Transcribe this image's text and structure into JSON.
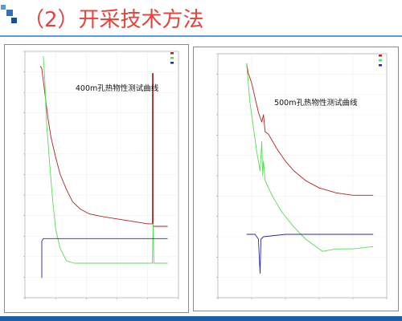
{
  "slide": {
    "title": "（2）开采技术方法",
    "accent_colors": {
      "title": "#e8413a",
      "rule": "#5b9bd5",
      "footer": "#1f5fa8"
    }
  },
  "chart_data": [
    {
      "type": "line",
      "title": "400m孔热物性测试曲线",
      "xlabel": "",
      "ylabel": "",
      "grid": true,
      "legend": "top-right",
      "series": [
        {
          "color": "#b22222",
          "points": [
            [
              0.1,
              0.06
            ],
            [
              0.11,
              0.07
            ],
            [
              0.13,
              0.17
            ],
            [
              0.15,
              0.27
            ],
            [
              0.17,
              0.35
            ],
            [
              0.2,
              0.43
            ],
            [
              0.23,
              0.5
            ],
            [
              0.27,
              0.56
            ],
            [
              0.31,
              0.61
            ],
            [
              0.36,
              0.64
            ],
            [
              0.42,
              0.66
            ],
            [
              0.5,
              0.67
            ],
            [
              0.6,
              0.68
            ],
            [
              0.7,
              0.69
            ],
            [
              0.8,
              0.7
            ],
            [
              0.83,
              0.7
            ],
            [
              0.83,
              0.09
            ],
            [
              0.835,
              0.09
            ],
            [
              0.835,
              0.71
            ],
            [
              0.93,
              0.71
            ]
          ]
        },
        {
          "color": "#55dd55",
          "points": [
            [
              0.12,
              0.02
            ],
            [
              0.13,
              0.12
            ],
            [
              0.14,
              0.28
            ],
            [
              0.16,
              0.45
            ],
            [
              0.18,
              0.6
            ],
            [
              0.2,
              0.72
            ],
            [
              0.23,
              0.8
            ],
            [
              0.27,
              0.85
            ],
            [
              0.32,
              0.86
            ],
            [
              0.45,
              0.86
            ],
            [
              0.6,
              0.86
            ],
            [
              0.83,
              0.86
            ],
            [
              0.835,
              0.7
            ],
            [
              0.84,
              0.86
            ],
            [
              0.93,
              0.86
            ]
          ]
        },
        {
          "color": "#2a2a9a",
          "points": [
            [
              0.11,
              0.92
            ],
            [
              0.11,
              0.77
            ],
            [
              0.12,
              0.76
            ],
            [
              0.3,
              0.76
            ],
            [
              0.5,
              0.76
            ],
            [
              0.7,
              0.76
            ],
            [
              0.93,
              0.76
            ]
          ]
        }
      ]
    },
    {
      "type": "line",
      "title": "500m孔热物性测试曲线",
      "xlabel": "",
      "ylabel": "",
      "grid": true,
      "legend": "top-right",
      "series": [
        {
          "color": "#b22222",
          "points": [
            [
              0.17,
              0.04
            ],
            [
              0.18,
              0.08
            ],
            [
              0.2,
              0.12
            ],
            [
              0.22,
              0.18
            ],
            [
              0.24,
              0.24
            ],
            [
              0.26,
              0.28
            ],
            [
              0.27,
              0.25
            ],
            [
              0.28,
              0.32
            ],
            [
              0.3,
              0.33
            ],
            [
              0.35,
              0.39
            ],
            [
              0.4,
              0.44
            ],
            [
              0.45,
              0.48
            ],
            [
              0.52,
              0.52
            ],
            [
              0.6,
              0.55
            ],
            [
              0.7,
              0.57
            ],
            [
              0.8,
              0.58
            ],
            [
              0.92,
              0.58
            ]
          ]
        },
        {
          "color": "#55dd55",
          "points": [
            [
              0.17,
              0.04
            ],
            [
              0.18,
              0.12
            ],
            [
              0.19,
              0.2
            ],
            [
              0.21,
              0.3
            ],
            [
              0.23,
              0.4
            ],
            [
              0.25,
              0.48
            ],
            [
              0.26,
              0.36
            ],
            [
              0.265,
              0.5
            ],
            [
              0.27,
              0.44
            ],
            [
              0.28,
              0.52
            ],
            [
              0.32,
              0.58
            ],
            [
              0.38,
              0.65
            ],
            [
              0.45,
              0.71
            ],
            [
              0.52,
              0.76
            ],
            [
              0.58,
              0.79
            ],
            [
              0.62,
              0.81
            ],
            [
              0.7,
              0.8
            ],
            [
              0.8,
              0.8
            ],
            [
              0.92,
              0.79
            ]
          ]
        },
        {
          "color": "#2a2a9a",
          "points": [
            [
              0.17,
              0.74
            ],
            [
              0.22,
              0.74
            ],
            [
              0.24,
              0.76
            ],
            [
              0.25,
              0.9
            ],
            [
              0.255,
              0.76
            ],
            [
              0.27,
              0.75
            ],
            [
              0.4,
              0.74
            ],
            [
              0.55,
              0.74
            ],
            [
              0.7,
              0.74
            ],
            [
              0.8,
              0.74
            ],
            [
              0.92,
              0.74
            ]
          ]
        }
      ]
    }
  ]
}
